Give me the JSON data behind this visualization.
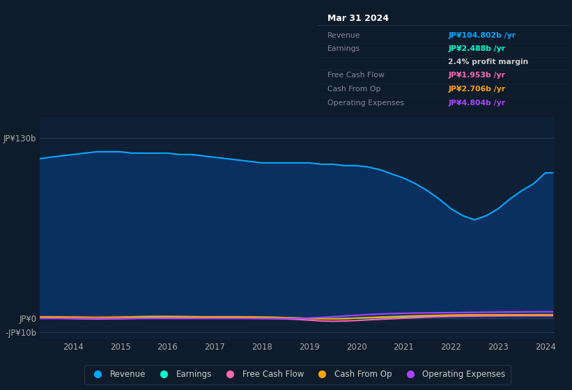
{
  "background_color": "#0d1b2a",
  "plot_bg_color": "#0d2035",
  "title_box": {
    "date": "Mar 31 2024",
    "revenue_label": "Revenue",
    "revenue_val": "JP¥104.802b /yr",
    "earnings_label": "Earnings",
    "earnings_val": "JP¥2.488b /yr",
    "profit_margin": "2.4% profit margin",
    "fcf_label": "Free Cash Flow",
    "fcf_val": "JP¥1.953b /yr",
    "cfo_label": "Cash From Op",
    "cfo_val": "JP¥2.706b /yr",
    "opex_label": "Operating Expenses",
    "opex_val": "JP¥4.804b /yr"
  },
  "ylabel_top": "JP¥130b",
  "ylabel_zero": "JP¥0",
  "ylabel_neg": "-JP¥10b",
  "x_labels": [
    "2014",
    "2015",
    "2016",
    "2017",
    "2018",
    "2019",
    "2020",
    "2021",
    "2022",
    "2023",
    "2024"
  ],
  "years": [
    2013.3,
    2013.5,
    2013.75,
    2014.0,
    2014.25,
    2014.5,
    2014.75,
    2015.0,
    2015.25,
    2015.5,
    2015.75,
    2016.0,
    2016.25,
    2016.5,
    2016.75,
    2017.0,
    2017.25,
    2017.5,
    2017.75,
    2018.0,
    2018.25,
    2018.5,
    2018.75,
    2019.0,
    2019.25,
    2019.5,
    2019.75,
    2020.0,
    2020.25,
    2020.5,
    2020.75,
    2021.0,
    2021.25,
    2021.5,
    2021.75,
    2022.0,
    2022.25,
    2022.5,
    2022.75,
    2023.0,
    2023.25,
    2023.5,
    2023.75,
    2024.0,
    2024.15
  ],
  "revenue": [
    115,
    116,
    117,
    118,
    119,
    120,
    120,
    120,
    119,
    119,
    119,
    119,
    118,
    118,
    117,
    116,
    115,
    114,
    113,
    112,
    112,
    112,
    112,
    112,
    111,
    111,
    110,
    110,
    109,
    107,
    104,
    101,
    97,
    92,
    86,
    79,
    74,
    71,
    74,
    79,
    86,
    92,
    97,
    104.8,
    104.8
  ],
  "earnings": [
    1.0,
    1.0,
    0.9,
    0.8,
    0.6,
    0.5,
    0.5,
    0.6,
    0.8,
    1.0,
    1.1,
    1.2,
    1.2,
    1.1,
    1.0,
    1.0,
    1.0,
    1.0,
    1.0,
    0.9,
    0.8,
    0.6,
    0.3,
    0.1,
    -0.1,
    -0.3,
    -0.1,
    0.2,
    0.5,
    0.7,
    0.9,
    1.1,
    1.4,
    1.7,
    1.9,
    2.1,
    2.2,
    2.3,
    2.4,
    2.4,
    2.45,
    2.47,
    2.488,
    2.488,
    2.488
  ],
  "free_cash_flow": [
    0.3,
    0.2,
    0.1,
    -0.1,
    -0.3,
    -0.4,
    -0.3,
    -0.2,
    0.0,
    0.2,
    0.4,
    0.5,
    0.5,
    0.4,
    0.3,
    0.2,
    0.2,
    0.2,
    0.1,
    0.0,
    -0.1,
    -0.3,
    -0.7,
    -1.2,
    -1.8,
    -2.0,
    -1.8,
    -1.5,
    -1.0,
    -0.6,
    -0.2,
    0.2,
    0.6,
    1.0,
    1.3,
    1.5,
    1.6,
    1.7,
    1.8,
    1.85,
    1.9,
    1.93,
    1.953,
    1.953,
    1.953
  ],
  "cash_from_op": [
    1.2,
    1.2,
    1.1,
    1.0,
    0.9,
    0.8,
    0.9,
    1.0,
    1.2,
    1.4,
    1.5,
    1.5,
    1.4,
    1.3,
    1.2,
    1.2,
    1.2,
    1.2,
    1.1,
    1.0,
    0.8,
    0.6,
    0.3,
    0.0,
    -0.2,
    -0.3,
    -0.1,
    0.3,
    0.7,
    1.0,
    1.3,
    1.6,
    1.9,
    2.1,
    2.3,
    2.5,
    2.6,
    2.65,
    2.7,
    2.7,
    2.71,
    2.706,
    2.706,
    2.706,
    2.706
  ],
  "operating_expenses": [
    0.0,
    0.0,
    0.0,
    0.0,
    0.0,
    0.0,
    0.0,
    0.0,
    0.0,
    0.0,
    0.0,
    0.0,
    0.0,
    0.0,
    0.0,
    0.0,
    0.0,
    0.0,
    0.0,
    0.0,
    0.0,
    0.0,
    0.0,
    0.3,
    0.7,
    1.2,
    1.8,
    2.3,
    2.8,
    3.2,
    3.5,
    3.7,
    3.9,
    4.0,
    4.1,
    4.2,
    4.3,
    4.4,
    4.5,
    4.6,
    4.65,
    4.7,
    4.804,
    4.804,
    4.804
  ],
  "revenue_color": "#00aaff",
  "earnings_color": "#00ffcc",
  "free_cash_flow_color": "#ff69b4",
  "cash_from_op_color": "#ffa500",
  "operating_expenses_color": "#aa44ff",
  "revenue_fill_alpha": 0.9,
  "ylim": [
    -15,
    145
  ],
  "xlim": [
    2013.3,
    2024.2
  ]
}
